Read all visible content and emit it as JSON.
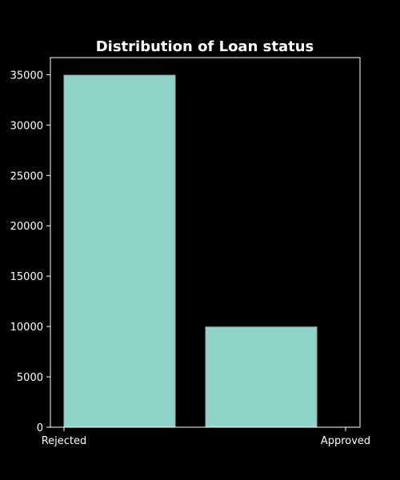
{
  "chart_data": {
    "type": "bar",
    "title": "Distribution of Loan status",
    "categories": [
      "Rejected",
      "Approved"
    ],
    "values": [
      34950,
      9950
    ],
    "ylim": [
      0,
      36700
    ],
    "yticks": [
      0,
      5000,
      10000,
      15000,
      20000,
      25000,
      30000,
      35000
    ],
    "xlabel": "",
    "ylabel": "",
    "grid": false,
    "bar_color": "#8dd3c7",
    "bar_edge_color": "#aaaaaa",
    "background_color": "#000000",
    "axis_color": "#ffffff"
  }
}
